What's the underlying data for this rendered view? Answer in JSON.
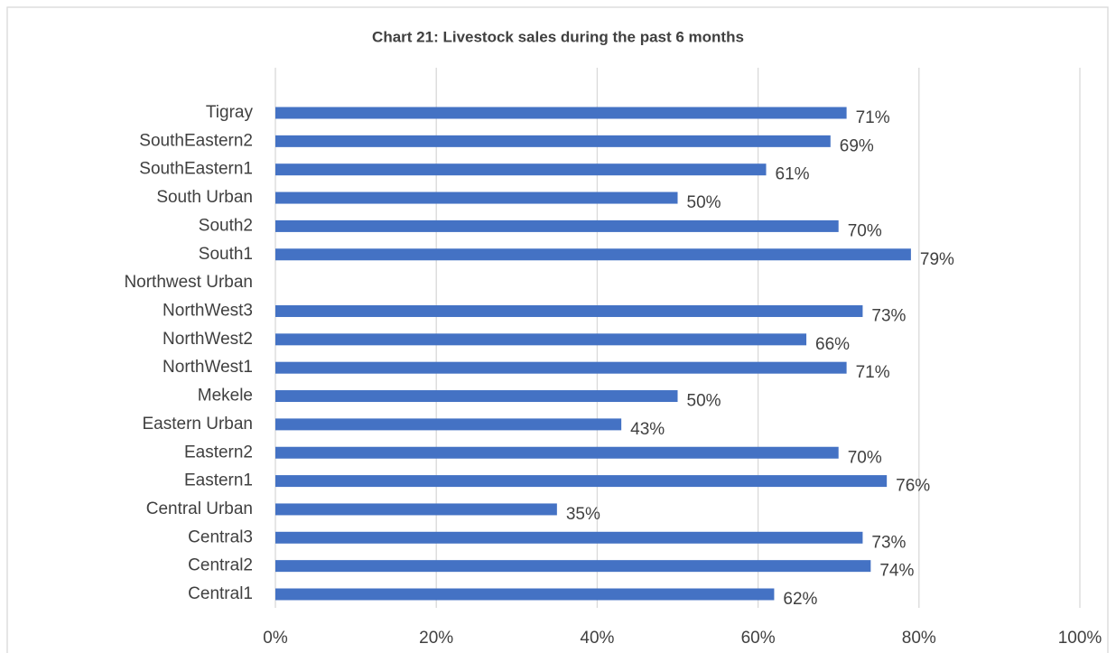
{
  "chart_data": {
    "type": "hbar",
    "title": "Chart 21: Livestock sales during the past 6 months",
    "categories": [
      "Central1",
      "Central2",
      "Central3",
      "Central Urban",
      "Eastern1",
      "Eastern2",
      "Eastern Urban",
      "Mekele",
      "NorthWest1",
      "NorthWest2",
      "NorthWest3",
      "Northwest Urban",
      "South1",
      "South2",
      "South Urban",
      "SouthEastern1",
      "SouthEastern2",
      "Tigray"
    ],
    "values": [
      62,
      74,
      73,
      35,
      76,
      70,
      43,
      50,
      71,
      66,
      73,
      null,
      79,
      70,
      50,
      61,
      69,
      71
    ],
    "value_labels": [
      "62%",
      "74%",
      "73%",
      "35%",
      "76%",
      "70%",
      "43%",
      "50%",
      "71%",
      "66%",
      "73%",
      null,
      "79%",
      "70%",
      "50%",
      "61%",
      "69%",
      "71%"
    ],
    "color": "#4472c4",
    "xlim": [
      0,
      100
    ],
    "xticks": [
      {
        "value": 0,
        "label": "0%"
      },
      {
        "value": 20,
        "label": "20%"
      },
      {
        "value": 40,
        "label": "40%"
      },
      {
        "value": 60,
        "label": "60%"
      },
      {
        "value": 80,
        "label": "80%"
      },
      {
        "value": 100,
        "label": "100%"
      }
    ],
    "grid": true
  }
}
